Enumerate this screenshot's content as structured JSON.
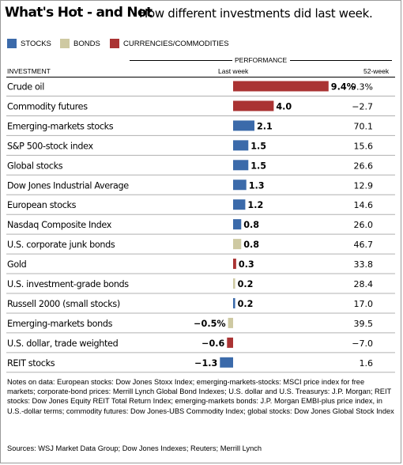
{
  "header": {
    "title": "What's Hot - and Not",
    "subtitle": "How different investments did last week."
  },
  "legend": [
    {
      "label": "STOCKS",
      "color": "#3b6aaa"
    },
    {
      "label": "BONDS",
      "color": "#cec9a2"
    },
    {
      "label": "CURRENCIES/COMMODITIES",
      "color": "#aa3333"
    }
  ],
  "columns": {
    "group": "PERFORMANCE",
    "investment": "INVESTMENT",
    "last_week": "Last week",
    "week52": "52-week"
  },
  "chart_data": {
    "type": "bar",
    "orientation": "horizontal",
    "title": "What's Hot - and Not",
    "subtitle": "How different investments did last week.",
    "series_name": "Last week",
    "value_unit": "%",
    "categories": [
      "Crude oil",
      "Commodity futures",
      "Emerging-markets stocks",
      "S&P 500-stock index",
      "Global stocks",
      "Dow Jones Industrial Average",
      "European stocks",
      "Nasdaq Composite Index",
      "U.S. corporate junk bonds",
      "Gold",
      "U.S. investment-grade bonds",
      "Russell 2000 (small stocks)",
      "Emerging-markets bonds",
      "U.S. dollar, trade weighted",
      "REIT stocks"
    ],
    "values": [
      9.4,
      4.0,
      2.1,
      1.5,
      1.5,
      1.3,
      1.2,
      0.8,
      0.8,
      0.3,
      0.2,
      0.2,
      -0.5,
      -0.6,
      -1.3
    ],
    "value_labels": [
      "9.4%",
      "4.0",
      "2.1",
      "1.5",
      "1.5",
      "1.3",
      "1.2",
      "0.8",
      "0.8",
      "0.3",
      "0.2",
      "0.2",
      "−0.5%",
      "−0.6",
      "−1.3"
    ],
    "kinds": [
      "commodity",
      "commodity",
      "stocks",
      "stocks",
      "stocks",
      "stocks",
      "stocks",
      "stocks",
      "bonds",
      "commodity",
      "bonds",
      "stocks",
      "bonds",
      "commodity",
      "stocks"
    ],
    "week52_labels": [
      "9.3%",
      "−2.7",
      "70.1",
      "15.6",
      "26.6",
      "12.9",
      "14.6",
      "26.0",
      "46.7",
      "33.8",
      "28.4",
      "17.0",
      "39.5",
      "−7.0",
      "1.6"
    ],
    "week52_values": [
      9.3,
      -2.7,
      70.1,
      15.6,
      26.6,
      12.9,
      14.6,
      26.0,
      46.7,
      33.8,
      28.4,
      17.0,
      39.5,
      -7.0,
      1.6
    ]
  },
  "footer": {
    "notes": "Notes on data: European stocks: Dow Jones Stoxx Index; emerging-markets-stocks: MSCI price index for free markets; corporate-bond prices: Merrill Lynch Global Bond Indexes; U.S. dollar and U.S. Treasurys: J.P. Morgan; REIT stocks: Dow Jones Equity REIT Total Return Index; emerging-markets bonds: J.P. Morgan EMBI-plus price index, in U.S.-dollar terms; commodity futures: Dow Jones-UBS Commodity Index; global stocks: Dow Jones Global Stock Index",
    "sources": "Sources: WSJ Market Data Group; Dow Jones Indexes; Reuters; Merrill Lynch"
  }
}
